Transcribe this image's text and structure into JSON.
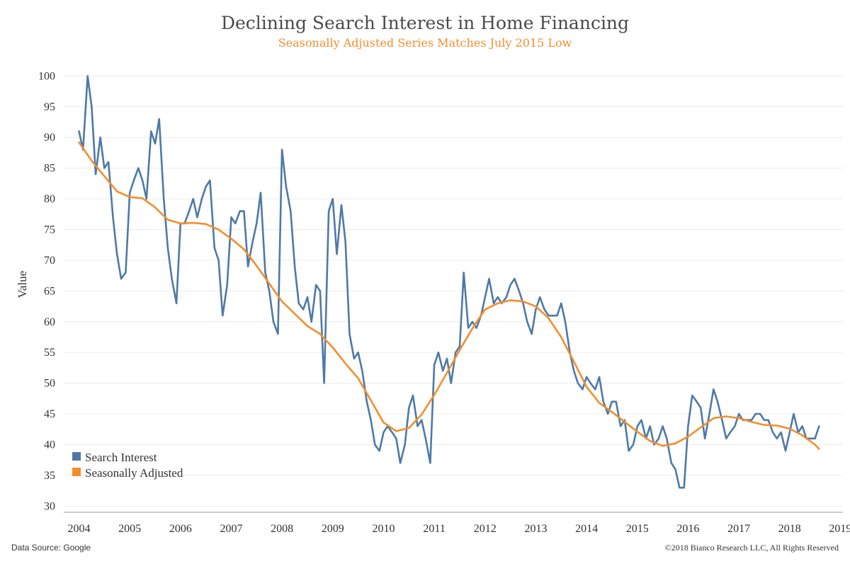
{
  "chart_data": {
    "type": "line",
    "title": "Declining Search Interest in Home Financing",
    "subtitle": "Seasonally Adjusted Series Matches July 2015 Low",
    "xlabel": "",
    "ylabel": "Value",
    "xlim": [
      2003.7,
      2019.05
    ],
    "ylim": [
      29,
      102
    ],
    "yticks": [
      30,
      35,
      40,
      45,
      50,
      55,
      60,
      65,
      70,
      75,
      80,
      85,
      90,
      95,
      100
    ],
    "xticks": [
      2004,
      2005,
      2006,
      2007,
      2008,
      2009,
      2010,
      2011,
      2012,
      2013,
      2014,
      2015,
      2016,
      2017,
      2018,
      2019
    ],
    "grid": true,
    "legend_position": "bottom-left",
    "series": [
      {
        "name": "Search Interest",
        "color": "#4e79a7",
        "x": [
          2004.0,
          2004.08,
          2004.17,
          2004.25,
          2004.33,
          2004.42,
          2004.5,
          2004.58,
          2004.67,
          2004.75,
          2004.83,
          2004.92,
          2005.0,
          2005.08,
          2005.17,
          2005.25,
          2005.33,
          2005.42,
          2005.5,
          2005.58,
          2005.67,
          2005.75,
          2005.83,
          2005.92,
          2006.0,
          2006.08,
          2006.17,
          2006.25,
          2006.33,
          2006.42,
          2006.5,
          2006.58,
          2006.67,
          2006.75,
          2006.83,
          2006.92,
          2007.0,
          2007.08,
          2007.17,
          2007.25,
          2007.33,
          2007.42,
          2007.5,
          2007.58,
          2007.67,
          2007.75,
          2007.83,
          2007.92,
          2008.0,
          2008.08,
          2008.17,
          2008.25,
          2008.33,
          2008.42,
          2008.5,
          2008.58,
          2008.67,
          2008.75,
          2008.83,
          2008.92,
          2009.0,
          2009.08,
          2009.17,
          2009.25,
          2009.33,
          2009.42,
          2009.5,
          2009.58,
          2009.67,
          2009.75,
          2009.83,
          2009.92,
          2010.0,
          2010.08,
          2010.17,
          2010.25,
          2010.33,
          2010.42,
          2010.5,
          2010.58,
          2010.67,
          2010.75,
          2010.83,
          2010.92,
          2011.0,
          2011.08,
          2011.17,
          2011.25,
          2011.33,
          2011.42,
          2011.5,
          2011.58,
          2011.67,
          2011.75,
          2011.83,
          2011.92,
          2012.0,
          2012.08,
          2012.17,
          2012.25,
          2012.33,
          2012.42,
          2012.5,
          2012.58,
          2012.67,
          2012.75,
          2012.83,
          2012.92,
          2013.0,
          2013.08,
          2013.17,
          2013.25,
          2013.33,
          2013.42,
          2013.5,
          2013.58,
          2013.67,
          2013.75,
          2013.83,
          2013.92,
          2014.0,
          2014.08,
          2014.17,
          2014.25,
          2014.33,
          2014.42,
          2014.5,
          2014.58,
          2014.67,
          2014.75,
          2014.83,
          2014.92,
          2015.0,
          2015.08,
          2015.17,
          2015.25,
          2015.33,
          2015.42,
          2015.5,
          2015.58,
          2015.67,
          2015.75,
          2015.83,
          2015.92,
          2016.0,
          2016.08,
          2016.17,
          2016.25,
          2016.33,
          2016.42,
          2016.5,
          2016.58,
          2016.67,
          2016.75,
          2016.83,
          2016.92,
          2017.0,
          2017.08,
          2017.17,
          2017.25,
          2017.33,
          2017.42,
          2017.5,
          2017.58,
          2017.67,
          2017.75,
          2017.83,
          2017.92,
          2018.0,
          2018.08,
          2018.17,
          2018.25,
          2018.33,
          2018.42,
          2018.5,
          2018.58
        ],
        "values": [
          91,
          88,
          100,
          95,
          84,
          90,
          85,
          86,
          77,
          71,
          67,
          68,
          81,
          83,
          85,
          83,
          80,
          91,
          89,
          93,
          80,
          72,
          67,
          63,
          76,
          76,
          78,
          80,
          77,
          80,
          82,
          83,
          72,
          70,
          61,
          66,
          77,
          76,
          78,
          78,
          69,
          73,
          76,
          81,
          68,
          65,
          60,
          58,
          88,
          82,
          78,
          69,
          63,
          62,
          64,
          60,
          66,
          65,
          50,
          78,
          80,
          71,
          79,
          73,
          58,
          54,
          55,
          52,
          47,
          44,
          40,
          39,
          42,
          43,
          42,
          41,
          37,
          40,
          46,
          48,
          43,
          44,
          41,
          37,
          53,
          55,
          52,
          54,
          50,
          55,
          56,
          68,
          59,
          60,
          59,
          61,
          64,
          67,
          63,
          64,
          63,
          64,
          66,
          67,
          65,
          63,
          60,
          58,
          62,
          64,
          62,
          61,
          61,
          61,
          63,
          60,
          55,
          52,
          50,
          49,
          51,
          50,
          49,
          51,
          47,
          45,
          47,
          47,
          43,
          44,
          39,
          40,
          43,
          44,
          41,
          43,
          40,
          41,
          43,
          41,
          37,
          36,
          33,
          33,
          43,
          48,
          47,
          46,
          41,
          45,
          49,
          47,
          44,
          41,
          42,
          43,
          45,
          44,
          44,
          44,
          45,
          45,
          44,
          44,
          42,
          41,
          42,
          39,
          42,
          45,
          42,
          43,
          41,
          41,
          41,
          43
        ]
      },
      {
        "name": "Seasonally Adjusted",
        "color": "#f28e2b",
        "x": [
          2004.0,
          2004.25,
          2004.5,
          2004.75,
          2005.0,
          2005.25,
          2005.5,
          2005.75,
          2006.0,
          2006.25,
          2006.5,
          2006.75,
          2007.0,
          2007.25,
          2007.5,
          2007.75,
          2008.0,
          2008.25,
          2008.5,
          2008.75,
          2009.0,
          2009.25,
          2009.5,
          2009.75,
          2010.0,
          2010.25,
          2010.5,
          2010.75,
          2011.0,
          2011.25,
          2011.5,
          2011.75,
          2012.0,
          2012.25,
          2012.5,
          2012.75,
          2013.0,
          2013.25,
          2013.5,
          2013.75,
          2014.0,
          2014.25,
          2014.5,
          2014.75,
          2015.0,
          2015.25,
          2015.5,
          2015.75,
          2016.0,
          2016.25,
          2016.5,
          2016.75,
          2017.0,
          2017.25,
          2017.5,
          2017.75,
          2018.0,
          2018.25,
          2018.5,
          2018.58
        ],
        "values": [
          89.2,
          86.2,
          83.7,
          81.2,
          80.3,
          80.1,
          78.6,
          76.6,
          76.0,
          76.1,
          75.9,
          75.0,
          73.5,
          71.8,
          69.1,
          66.2,
          63.3,
          61.3,
          59.3,
          58.0,
          55.8,
          53.2,
          50.8,
          47.2,
          43.6,
          42.2,
          42.7,
          44.9,
          48.1,
          51.7,
          55.4,
          58.9,
          62.0,
          63.0,
          63.5,
          63.3,
          62.5,
          60.6,
          57.5,
          53.5,
          49.4,
          46.8,
          45.3,
          43.7,
          42.1,
          40.6,
          39.8,
          40.2,
          41.3,
          42.8,
          44.3,
          44.6,
          44.3,
          43.7,
          43.2,
          43.1,
          42.6,
          41.5,
          40.0,
          39.3
        ]
      }
    ]
  },
  "footer": {
    "source": "Data Source: Google",
    "copyright": "©2018 Bianco Research LLC, All Rights Reserved"
  }
}
